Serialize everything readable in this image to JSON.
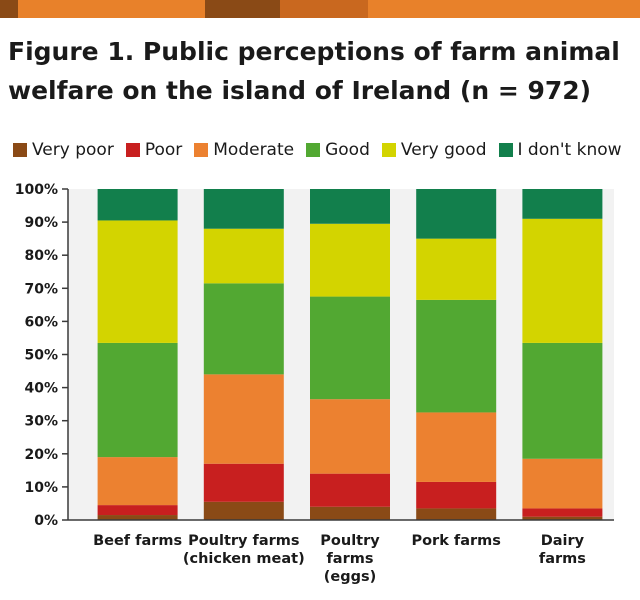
{
  "colors": {
    "stripe": [
      "#8a4a16",
      "#e8812a",
      "#8a4a16",
      "#c9681f",
      "#e8812a"
    ],
    "plot_background": "#f2f2f2",
    "axis": "#3a3a3a",
    "text": "#1a1a1a"
  },
  "title_lines": [
    "Figure 1. Public perceptions of farm animal",
    "welfare on the island of Ireland (n = 972)"
  ],
  "chart_data": {
    "type": "bar",
    "stacked": true,
    "title": "Figure 1. Public perceptions of farm animal welfare on the island of Ireland (n = 972)",
    "xlabel": "",
    "ylabel": "",
    "ylim": [
      0,
      100
    ],
    "yticks": [
      "0%",
      "10%",
      "20%",
      "30%",
      "40%",
      "50%",
      "60%",
      "70%",
      "80%",
      "90%",
      "100%"
    ],
    "grid": false,
    "legend_position": "top",
    "categories": [
      [
        "Beef farms"
      ],
      [
        "Poultry farms",
        "(chicken meat)"
      ],
      [
        "Poultry",
        "farms",
        "(eggs)"
      ],
      [
        "Pork farms"
      ],
      [
        "Dairy",
        "farms"
      ]
    ],
    "series": [
      {
        "name": "Very poor",
        "color": "#8a4a16",
        "values": [
          1.5,
          5.5,
          4,
          3.5,
          1
        ]
      },
      {
        "name": "Poor",
        "color": "#c81f1f",
        "values": [
          3,
          11.5,
          10,
          8,
          2.5
        ]
      },
      {
        "name": "Moderate",
        "color": "#ec8130",
        "values": [
          14.5,
          27,
          22.5,
          21,
          15
        ]
      },
      {
        "name": "Good",
        "color": "#52a832",
        "values": [
          34.5,
          27.5,
          31,
          34,
          35
        ]
      },
      {
        "name": "Very good",
        "color": "#d3d400",
        "values": [
          37,
          16.5,
          22,
          18.5,
          37.5
        ]
      },
      {
        "name": "I don't know",
        "color": "#127f4c",
        "values": [
          9.5,
          12,
          10.5,
          15,
          9
        ]
      }
    ]
  }
}
